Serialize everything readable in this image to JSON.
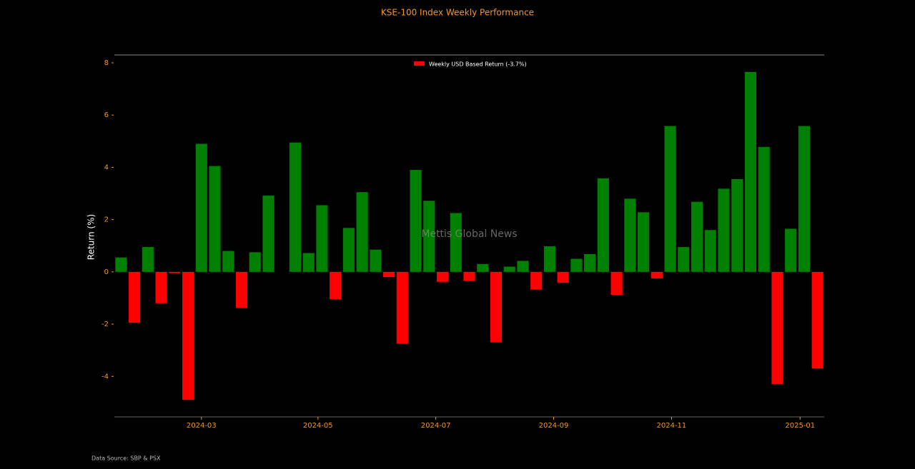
{
  "chart_data": {
    "type": "bar",
    "title": "KSE-100 Index Weekly Performance",
    "ylabel": "Return (%)",
    "watermark": "Mettis Global News",
    "source": "Data Source: SBP & PSX",
    "legend": {
      "name": "Weekly USD Based Return (-3.7%)",
      "color": "#ff0000",
      "position": "upper center"
    },
    "positive_color": "#008000",
    "negative_color": "#ff0000",
    "categories": [
      null,
      null,
      null,
      null,
      null,
      null,
      null,
      null,
      null,
      null,
      null,
      null,
      null,
      null,
      null,
      null,
      null,
      null,
      null,
      null,
      null,
      null,
      null,
      null,
      null,
      null,
      null,
      null,
      null,
      null,
      null,
      null,
      null,
      null,
      null,
      null,
      null,
      null,
      null,
      null,
      null,
      null,
      null,
      null,
      null,
      null,
      null,
      null,
      null,
      null,
      null,
      null,
      null
    ],
    "values": [
      0.55,
      -1.95,
      0.95,
      -1.2,
      -0.05,
      -4.9,
      4.9,
      4.05,
      0.8,
      -1.38,
      0.75,
      2.92,
      null,
      4.95,
      0.72,
      2.55,
      -1.05,
      1.68,
      3.05,
      0.85,
      -0.2,
      -2.75,
      3.9,
      2.72,
      -0.38,
      2.25,
      -0.35,
      0.3,
      -2.7,
      0.2,
      0.42,
      -0.68,
      0.98,
      -0.42,
      0.5,
      0.68,
      3.58,
      -0.88,
      2.8,
      2.28,
      -0.25,
      5.58,
      0.95,
      2.68,
      1.6,
      3.18,
      3.55,
      7.65,
      4.78,
      -4.3,
      1.65,
      5.58,
      -3.7
    ],
    "xlim": [
      -0.5,
      52.5
    ],
    "xticks": [
      {
        "value": 6.0,
        "label": "2024-03"
      },
      {
        "value": 14.7,
        "label": "2024-05"
      },
      {
        "value": 23.5,
        "label": "2024-07"
      },
      {
        "value": 32.3,
        "label": "2024-09"
      },
      {
        "value": 41.1,
        "label": "2024-11"
      },
      {
        "value": 50.7,
        "label": "2025-01"
      }
    ],
    "ylim": [
      -5.55,
      8.3
    ],
    "yticks": [
      -4,
      -2,
      0,
      2,
      4,
      6,
      8
    ],
    "grid": false
  }
}
